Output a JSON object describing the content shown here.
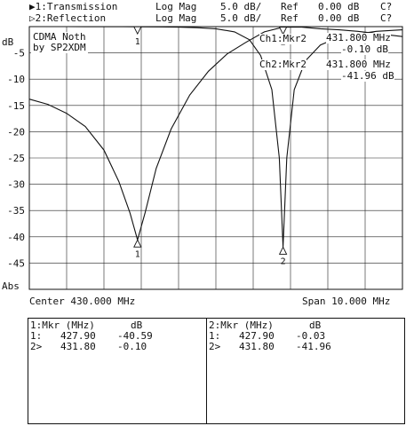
{
  "header": {
    "ch1_name": "▶1:Transmission",
    "ch2_name": "▷2:Reflection",
    "ch1_format": "Log Mag",
    "ch2_format": "Log Mag",
    "ch1_scale": "5.0 dB/",
    "ch2_scale": "5.0 dB/",
    "ch1_ref": "Ref",
    "ch2_ref": "Ref",
    "ch1_ref_val": "0.00 dB",
    "ch2_ref_val": "0.00 dB",
    "ch1_flag": "C?",
    "ch2_flag": "C?"
  },
  "annotation": {
    "line1": "CDMA Noth",
    "line2": "by SP2XDM"
  },
  "marker_readout": {
    "ch1_label": "Ch1:Mkr2",
    "ch1_freq": "431.800 MHz",
    "ch1_val": "-0.10 dB",
    "ch2_label": "Ch2:Mkr2",
    "ch2_freq": "431.800 MHz",
    "ch2_val": "-41.96 dB"
  },
  "footer": {
    "center": "Center 430.000 MHz",
    "span": "Span 10.000 MHz"
  },
  "table1": {
    "header_a": "1:Mkr (MHz)",
    "header_b": "dB",
    "rows": [
      {
        "id": "1:",
        "freq": "427.90",
        "val": "-40.59"
      },
      {
        "id": "2>",
        "freq": "431.80",
        "val": "-0.10"
      }
    ]
  },
  "table2": {
    "header_a": "2:Mkr (MHz)",
    "header_b": "dB",
    "rows": [
      {
        "id": "1:",
        "freq": "427.90",
        "val": "-0.03"
      },
      {
        "id": "2>",
        "freq": "431.80",
        "val": "-41.96"
      }
    ]
  },
  "chart_data": {
    "type": "line",
    "xlabel": "",
    "ylabel": "dB",
    "ylabel_bottom": "Abs",
    "xlim": [
      425.0,
      435.0
    ],
    "ylim": [
      -50,
      0
    ],
    "yticks": [
      -5,
      -10,
      -15,
      -20,
      -25,
      -30,
      -35,
      -40,
      -45
    ],
    "x_divisions": 10,
    "grid": true,
    "series": [
      {
        "name": "1:Transmission",
        "x": [
          425.0,
          425.5,
          426.0,
          426.5,
          427.0,
          427.4,
          427.7,
          427.9,
          428.1,
          428.4,
          428.8,
          429.3,
          429.8,
          430.3,
          430.8,
          431.3,
          431.8,
          432.3,
          432.8,
          433.3,
          433.8,
          434.3,
          435.0
        ],
        "y": [
          -13.8,
          -14.8,
          -16.5,
          -19.0,
          -23.5,
          -29.5,
          -35.5,
          -40.59,
          -35.5,
          -27.0,
          -19.5,
          -13.0,
          -8.5,
          -5.2,
          -3.0,
          -1.0,
          -0.1,
          -0.1,
          -0.4,
          -0.6,
          -0.9,
          -1.3,
          -1.9
        ]
      },
      {
        "name": "2:Reflection",
        "x": [
          426.0,
          426.5,
          427.0,
          427.5,
          427.9,
          428.5,
          429.0,
          429.5,
          430.0,
          430.5,
          430.9,
          431.2,
          431.5,
          431.7,
          431.8,
          431.9,
          432.1,
          432.4,
          432.8,
          433.3,
          433.8,
          434.3,
          435.0
        ],
        "y": [
          0.0,
          -0.01,
          -0.02,
          -0.02,
          -0.03,
          -0.05,
          -0.1,
          -0.2,
          -0.4,
          -1.0,
          -2.5,
          -5.5,
          -12.0,
          -25.0,
          -41.96,
          -25.0,
          -12.0,
          -6.5,
          -3.5,
          -2.0,
          -1.4,
          -0.9,
          -0.6
        ]
      }
    ],
    "markers": [
      {
        "series": "1:Transmission",
        "id": "1",
        "x": 427.9,
        "y": -40.59
      },
      {
        "series": "1:Transmission",
        "id": "2",
        "x": 431.8,
        "y": -0.1
      },
      {
        "series": "2:Reflection",
        "id": "1",
        "x": 427.9,
        "y": -0.03
      },
      {
        "series": "2:Reflection",
        "id": "2",
        "x": 431.8,
        "y": -41.96
      }
    ]
  }
}
